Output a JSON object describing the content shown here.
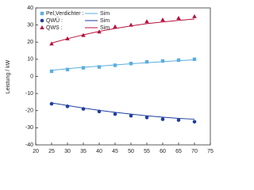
{
  "chart_data": {
    "type": "scatter",
    "y_label": "Leistung  /  kW",
    "x": [
      25,
      30,
      35,
      40,
      45,
      50,
      55,
      60,
      65,
      70
    ],
    "xlim": [
      20,
      75
    ],
    "xticks": [
      20,
      25,
      30,
      35,
      40,
      45,
      50,
      55,
      60,
      65,
      70,
      75
    ],
    "ylim": [
      -40,
      40
    ],
    "yticks": [
      -40,
      -30,
      -20,
      -10,
      0,
      10,
      20,
      30,
      40
    ],
    "legend": "upper left",
    "series": [
      {
        "name": "Pel,Verdichter :",
        "color": "#5aaee0",
        "mode": "markers",
        "marker": "square",
        "values": [
          3,
          4,
          5,
          5.5,
          6.5,
          7.5,
          8.5,
          9,
          9.5,
          10
        ]
      },
      {
        "name": "Sim",
        "color": "#5aaee0",
        "mode": "line",
        "values": [
          3.5,
          4.5,
          5.3,
          6,
          6.7,
          7.4,
          8,
          8.6,
          9.2,
          9.7
        ]
      },
      {
        "name": "QWÜ :",
        "color": "#1f3f9f",
        "mode": "markers",
        "marker": "circle",
        "values": [
          -16,
          -17.5,
          -19,
          -20.5,
          -22,
          -23,
          -24,
          -25,
          -25.5,
          -26.5
        ]
      },
      {
        "name": "Sim",
        "color": "#1f3f9f",
        "mode": "line",
        "values": [
          -15.5,
          -17,
          -18.5,
          -19.8,
          -21,
          -22,
          -23,
          -23.8,
          -24.5,
          -25
        ]
      },
      {
        "name": "QWS :",
        "color": "#b5123e",
        "mode": "markers",
        "marker": "triangle",
        "values": [
          19,
          22,
          24,
          26,
          29,
          30,
          32,
          33,
          34,
          35
        ]
      },
      {
        "name": "Sim",
        "color": "#b5123e",
        "mode": "line",
        "values": [
          19.5,
          22,
          24.3,
          26.3,
          28,
          29.5,
          30.8,
          31.8,
          32.7,
          33.5
        ]
      }
    ]
  }
}
